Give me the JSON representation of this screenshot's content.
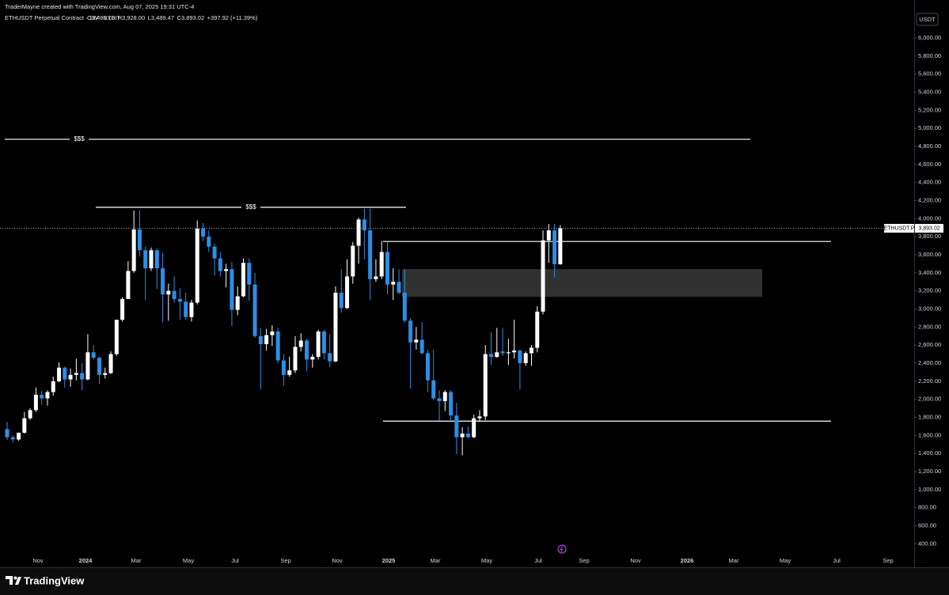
{
  "chart_data": {
    "type": "candlestick",
    "credit": "TraderMayne created with TradingView.com, Aug 07, 2025 19:31 UTC-4",
    "title": "ETHUSDT Perpetual Contract · 1W · BYBIT",
    "legend": {
      "open": "O3,495.10",
      "high": "H3,928.00",
      "low": "L3,489.47",
      "close": "C3,893.02",
      "change": "+397.92 (+11.39%)"
    },
    "currency": "USDT",
    "symbol_tag": "ETHUSDT.P",
    "last_price_label": "3,893.02",
    "brand": "TradingView",
    "up_color": "#ffffff",
    "down_color": "#2b8fe6",
    "open": [
      1670,
      1580,
      1555,
      1630,
      1790,
      1880,
      2050,
      2010,
      2080,
      2200,
      2350,
      2220,
      2270,
      2290,
      2220,
      2520,
      2460,
      2270,
      2290,
      2500,
      2880,
      3110,
      3420,
      3880,
      3650,
      3450,
      3650,
      3450,
      3160,
      3200,
      3110,
      3080,
      2910,
      3070,
      3890,
      3800,
      3690,
      3560,
      3420,
      3440,
      2990,
      3140,
      3510,
      3270,
      2700,
      2610,
      2710,
      2750,
      2430,
      2270,
      2320,
      2580,
      2650,
      2440,
      2470,
      2750,
      2510,
      2420,
      3180,
      3010,
      3360,
      3700,
      3990,
      3870,
      3330,
      3360,
      3630,
      3270,
      3300,
      3180,
      2870,
      2630,
      2660,
      2510,
      2210,
      2010,
      1980,
      2080,
      1820,
      1580,
      1620,
      1580,
      1790,
      1810,
      2500,
      2470,
      2530,
      2510,
      2520,
      2540,
      2400,
      2510,
      2570,
      2970,
      3760,
      3870,
      3495.1
    ],
    "high": [
      1750,
      1600,
      1630,
      1860,
      1900,
      2130,
      2090,
      2100,
      2250,
      2410,
      2360,
      2340,
      2450,
      2400,
      2720,
      2600,
      2470,
      2350,
      2530,
      2880,
      3130,
      3530,
      4090,
      4090,
      3690,
      3680,
      3670,
      3620,
      3280,
      3360,
      3230,
      3180,
      3100,
      3980,
      3950,
      3870,
      3720,
      3630,
      3500,
      3520,
      3250,
      3560,
      3560,
      3400,
      2790,
      2780,
      2820,
      2790,
      2500,
      2470,
      2700,
      2730,
      2670,
      2500,
      2770,
      2770,
      2720,
      3250,
      3440,
      3550,
      3740,
      4010,
      4110,
      4110,
      3550,
      3750,
      3740,
      3450,
      3440,
      3440,
      2900,
      2800,
      2850,
      2550,
      2550,
      2100,
      2100,
      2100,
      1960,
      1690,
      1700,
      1830,
      1880,
      2600,
      2740,
      2790,
      2790,
      2670,
      2880,
      2550,
      2530,
      2600,
      3030,
      3870,
      3940,
      3940,
      3928
    ],
    "low": [
      1550,
      1520,
      1540,
      1620,
      1770,
      1860,
      1940,
      1930,
      2040,
      2190,
      2130,
      2140,
      2210,
      2100,
      2210,
      2440,
      2170,
      2230,
      2280,
      2480,
      2860,
      3110,
      3400,
      3580,
      3100,
      3420,
      3220,
      2850,
      2870,
      3070,
      2880,
      2880,
      2860,
      3050,
      3750,
      3630,
      3370,
      3360,
      3240,
      2810,
      2930,
      3130,
      3090,
      2680,
      2110,
      2540,
      2590,
      2400,
      2150,
      2250,
      2290,
      2530,
      2310,
      2350,
      2440,
      2440,
      2360,
      2410,
      2960,
      3000,
      3280,
      3500,
      3550,
      3100,
      3300,
      3330,
      3160,
      3100,
      3160,
      2850,
      2120,
      2550,
      2500,
      2080,
      1990,
      1760,
      1870,
      1760,
      1390,
      1380,
      1570,
      1570,
      1750,
      1770,
      2380,
      2460,
      2480,
      2380,
      2450,
      2110,
      2370,
      2370,
      2520,
      2940,
      3510,
      3350,
      3489.47
    ],
    "close": [
      1580,
      1555,
      1630,
      1790,
      1880,
      2050,
      2010,
      2080,
      2200,
      2350,
      2220,
      2270,
      2290,
      2220,
      2520,
      2460,
      2270,
      2290,
      2500,
      2880,
      3110,
      3420,
      3880,
      3650,
      3450,
      3650,
      3450,
      3160,
      3200,
      3110,
      3080,
      2910,
      3070,
      3890,
      3800,
      3690,
      3560,
      3420,
      3440,
      2990,
      3140,
      3510,
      3270,
      2700,
      2610,
      2710,
      2750,
      2430,
      2270,
      2320,
      2580,
      2650,
      2440,
      2470,
      2750,
      2510,
      2420,
      3180,
      3010,
      3360,
      3700,
      3990,
      3870,
      3330,
      3360,
      3630,
      3270,
      3300,
      3180,
      2870,
      2630,
      2660,
      2510,
      2210,
      2010,
      1980,
      2080,
      1820,
      1580,
      1620,
      1580,
      1790,
      1810,
      2500,
      2470,
      2520,
      2510,
      2520,
      2540,
      2400,
      2510,
      2570,
      2970,
      3760,
      3870,
      3495.1,
      3893.02
    ],
    "levels": [
      {
        "value": 4878,
        "label": "$$$"
      },
      {
        "value": 4125,
        "label": "$$$"
      },
      {
        "value": 3747
      },
      {
        "value": 1758
      }
    ],
    "zone": [
      3134,
      3441
    ],
    "ylim": [
      140,
      6420
    ],
    "yticks": [
      {
        "value": 400,
        "label": "400.00"
      },
      {
        "value": 600,
        "label": "600.00"
      },
      {
        "value": 800,
        "label": "800.00"
      },
      {
        "value": 1000,
        "label": "1,000.00"
      },
      {
        "value": 1200,
        "label": "1,200.00"
      },
      {
        "value": 1400,
        "label": "1,400.00"
      },
      {
        "value": 1600,
        "label": "1,600.00"
      },
      {
        "value": 1800,
        "label": "1,800.00"
      },
      {
        "value": 2000,
        "label": "2,000.00"
      },
      {
        "value": 2200,
        "label": "2,200.00"
      },
      {
        "value": 2400,
        "label": "2,400.00"
      },
      {
        "value": 2600,
        "label": "2,600.00"
      },
      {
        "value": 2800,
        "label": "2,800.00"
      },
      {
        "value": 3000,
        "label": "3,000.00"
      },
      {
        "value": 3200,
        "label": "3,200.00"
      },
      {
        "value": 3400,
        "label": "3,400.00"
      },
      {
        "value": 3600,
        "label": "3,600.00"
      },
      {
        "value": 3800,
        "label": "3,800.00"
      },
      {
        "value": 4000,
        "label": "4,000.00"
      },
      {
        "value": 4200,
        "label": "4,200.00"
      },
      {
        "value": 4400,
        "label": "4,400.00"
      },
      {
        "value": 4600,
        "label": "4,600.00"
      },
      {
        "value": 4800,
        "label": "4,800.00"
      },
      {
        "value": 5000,
        "label": "5,000.00"
      },
      {
        "value": 5200,
        "label": "5,200.00"
      },
      {
        "value": 5400,
        "label": "5,400.00"
      },
      {
        "value": 5600,
        "label": "5,600.00"
      },
      {
        "value": 5800,
        "label": "5,800.00"
      },
      {
        "value": 6000,
        "label": "6,000.00"
      }
    ],
    "xticks": [
      "Nov",
      "2024",
      "Mar",
      "May",
      "Jul",
      "Sep",
      "Nov",
      "2025",
      "Mar",
      "May",
      "Jul",
      "Sep",
      "Nov",
      "2026",
      "Mar",
      "May",
      "Jul",
      "Sep"
    ]
  }
}
